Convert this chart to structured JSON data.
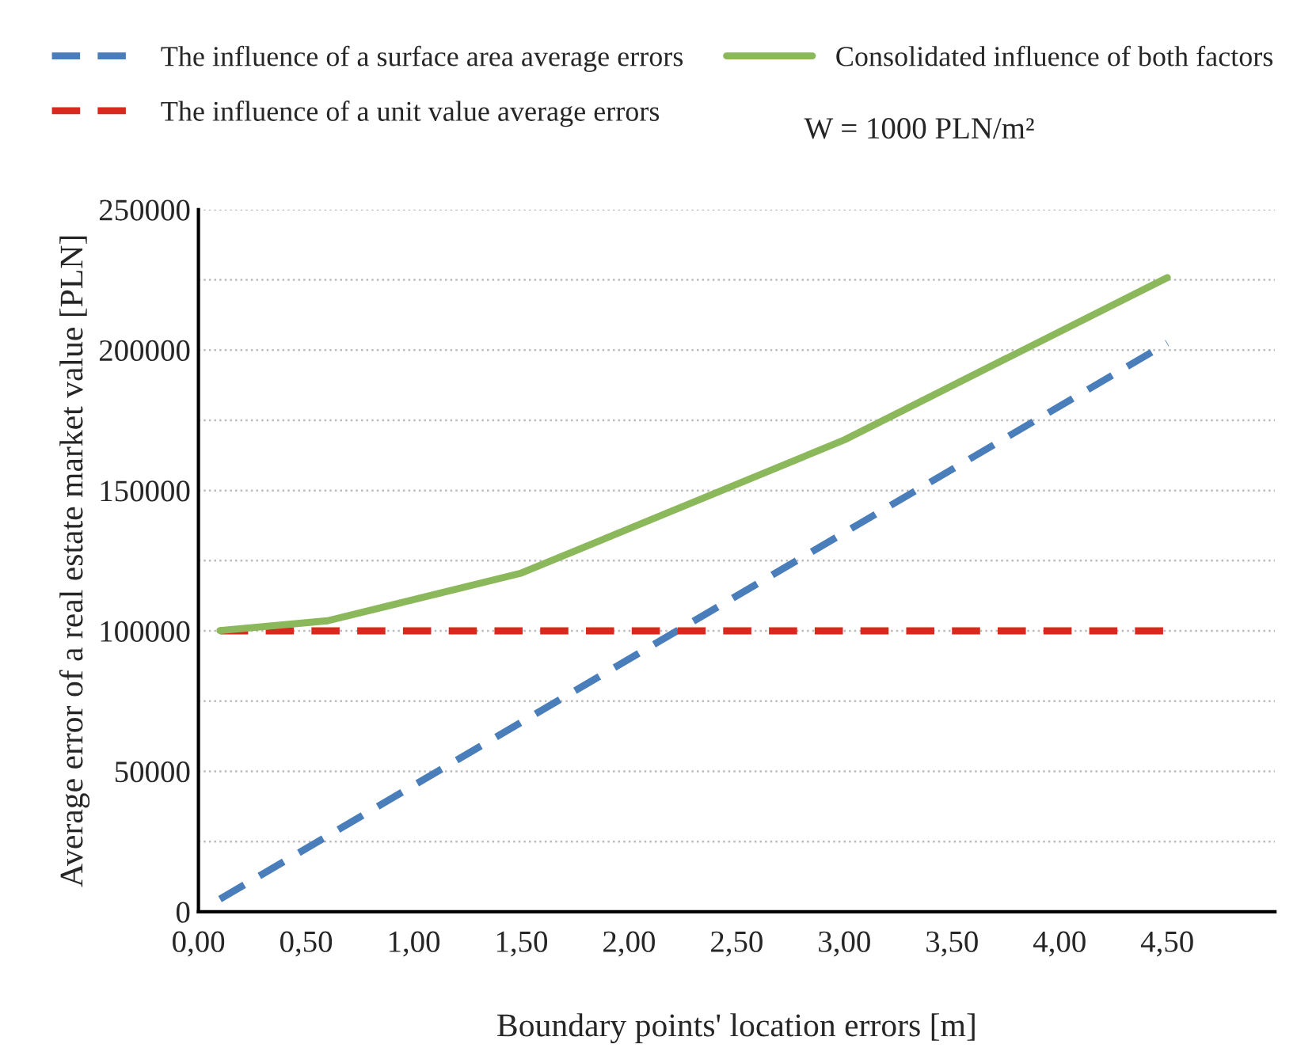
{
  "chart_data": {
    "type": "line",
    "xlabel": "Boundary points' location errors [m]",
    "ylabel": "Average error of a real estate market value [PLN]",
    "x": [
      0.1,
      0.6,
      1.5,
      3.0,
      4.5
    ],
    "series": [
      {
        "name": "The influence of a surface area average errors",
        "color": "#4a7ebb",
        "line_style": "dashed",
        "values": [
          4500,
          27000,
          67500,
          135000,
          202500
        ]
      },
      {
        "name": "The influence of a unit value average errors",
        "color": "#d9281e",
        "line_style": "dashed",
        "values": [
          100000,
          100000,
          100000,
          100000,
          100000
        ]
      },
      {
        "name": "Consolidated influence of both factors",
        "color": "#8bb85a",
        "line_style": "solid",
        "values": [
          100100,
          103600,
          120600,
          168000,
          225800
        ]
      }
    ],
    "annotations": [
      "W = 1000 PLN/m²"
    ],
    "xlim": [
      0,
      5
    ],
    "xticks": [
      {
        "value": 0,
        "label": "0,00"
      },
      {
        "value": 0.5,
        "label": "0,50"
      },
      {
        "value": 1.0,
        "label": "1,00"
      },
      {
        "value": 1.5,
        "label": "1,50"
      },
      {
        "value": 2.0,
        "label": "2,00"
      },
      {
        "value": 2.5,
        "label": "2,50"
      },
      {
        "value": 3.0,
        "label": "3,00"
      },
      {
        "value": 3.5,
        "label": "3,50"
      },
      {
        "value": 4.0,
        "label": "4,00"
      },
      {
        "value": 4.5,
        "label": "4,50"
      }
    ],
    "ylim": [
      0,
      250000
    ],
    "yticks": [
      0,
      {
        "value": 25000,
        "label": null
      },
      50000,
      {
        "value": 75000,
        "label": null
      },
      100000,
      {
        "value": 125000,
        "label": null
      },
      150000,
      {
        "value": 175000,
        "label": null
      },
      200000,
      {
        "value": 225000,
        "label": null
      },
      250000
    ],
    "grid": "y",
    "legend": "top",
    "marker": "none"
  }
}
